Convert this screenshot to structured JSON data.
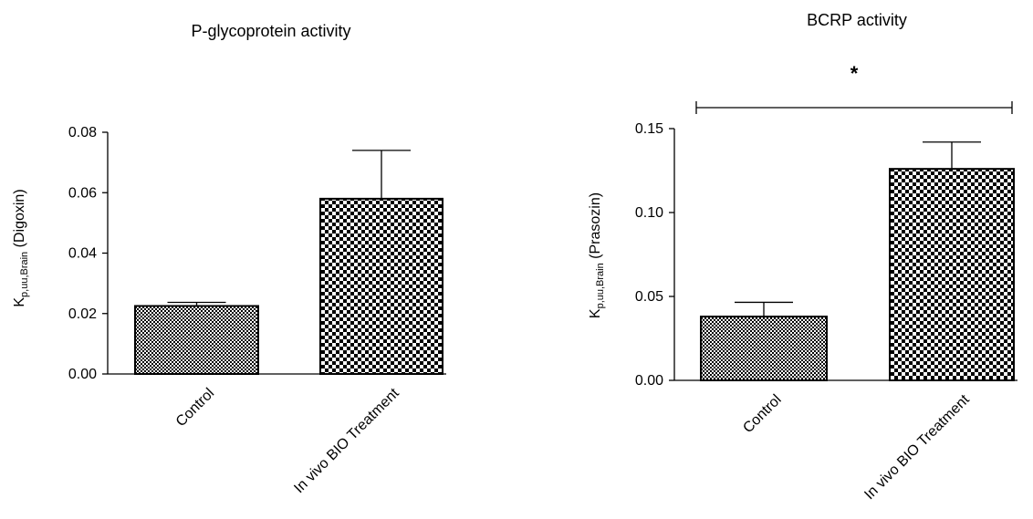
{
  "chart_data": [
    {
      "type": "bar",
      "title": "P-glycoprotein activity",
      "ylabel": {
        "main": "K",
        "sub": "p,uu,Brain",
        "suffix": " (Digoxin)"
      },
      "categories": [
        "Control",
        "In vivo BIO Treatment"
      ],
      "values": [
        0.0225,
        0.058
      ],
      "errors": [
        0.0012,
        0.016
      ],
      "patterns": [
        "fine-check",
        "coarse-check"
      ],
      "ylim": [
        0,
        0.08
      ],
      "yticks": [
        "0.00",
        "0.02",
        "0.04",
        "0.06",
        "0.08"
      ],
      "grid": false
    },
    {
      "type": "bar",
      "title": "BCRP activity",
      "ylabel": {
        "main": "K",
        "sub": "p,uu,Brain",
        "suffix": " (Prasozin)"
      },
      "categories": [
        "Control",
        "In vivo BIO Treatment"
      ],
      "values": [
        0.038,
        0.126
      ],
      "errors": [
        0.0085,
        0.016
      ],
      "patterns": [
        "fine-check",
        "coarse-check"
      ],
      "ylim": [
        0,
        0.15
      ],
      "yticks": [
        "0.00",
        "0.05",
        "0.10",
        "0.15"
      ],
      "grid": false,
      "significance": {
        "label": "*",
        "between": [
          0,
          1
        ]
      }
    }
  ]
}
